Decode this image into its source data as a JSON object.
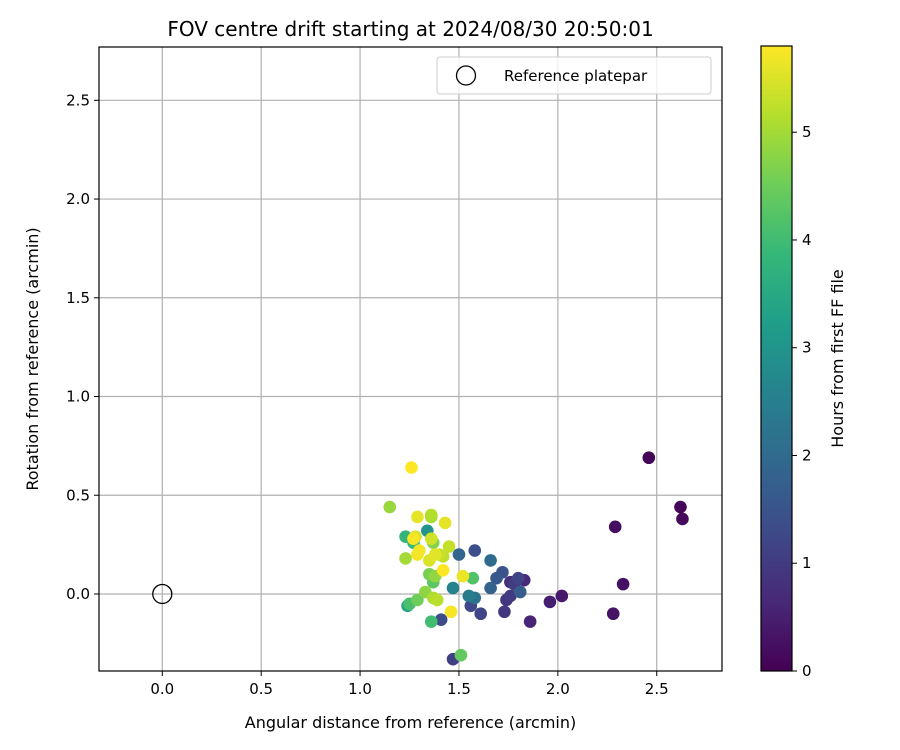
{
  "chart_data": {
    "type": "scatter",
    "title": "FOV centre drift starting at 2024/08/30 20:50:01",
    "xlabel": "Angular distance from reference (arcmin)",
    "ylabel": "Rotation from reference (arcmin)",
    "xlim": [
      -0.32,
      2.83
    ],
    "ylim": [
      -0.39,
      2.77
    ],
    "xticks": [
      0.0,
      0.5,
      1.0,
      1.5,
      2.0,
      2.5
    ],
    "yticks": [
      0.0,
      0.5,
      1.0,
      1.5,
      2.0,
      2.5
    ],
    "xtick_labels": [
      "0.0",
      "0.5",
      "1.0",
      "1.5",
      "2.0",
      "2.5"
    ],
    "ytick_labels": [
      "0.0",
      "0.5",
      "1.0",
      "1.5",
      "2.0",
      "2.5"
    ],
    "grid": true,
    "legend": {
      "placement": "top-right",
      "entries": [
        "Reference platepar"
      ]
    },
    "reference_point": {
      "name": "Reference platepar",
      "x": 0.0,
      "y": 0.0
    },
    "colorbar": {
      "label": "Hours from first FF file",
      "colormap": "viridis",
      "range": [
        0,
        5.8
      ],
      "ticks": [
        0,
        1,
        2,
        3,
        4,
        5
      ],
      "tick_labels": [
        "0",
        "1",
        "2",
        "3",
        "4",
        "5"
      ]
    },
    "points": [
      {
        "x": 2.46,
        "y": 0.69,
        "t": 0.05
      },
      {
        "x": 2.62,
        "y": 0.44,
        "t": 0.1
      },
      {
        "x": 2.63,
        "y": 0.38,
        "t": 0.15
      },
      {
        "x": 2.29,
        "y": 0.34,
        "t": 0.2
      },
      {
        "x": 2.33,
        "y": 0.05,
        "t": 0.25
      },
      {
        "x": 2.28,
        "y": -0.1,
        "t": 0.3
      },
      {
        "x": 2.02,
        "y": -0.01,
        "t": 0.4
      },
      {
        "x": 1.96,
        "y": -0.04,
        "t": 0.5
      },
      {
        "x": 1.86,
        "y": -0.14,
        "t": 0.6
      },
      {
        "x": 1.83,
        "y": 0.07,
        "t": 0.7
      },
      {
        "x": 1.76,
        "y": 0.06,
        "t": 0.8
      },
      {
        "x": 1.74,
        "y": -0.03,
        "t": 0.9
      },
      {
        "x": 1.73,
        "y": -0.09,
        "t": 0.95
      },
      {
        "x": 1.76,
        "y": -0.01,
        "t": 1.0
      },
      {
        "x": 1.78,
        "y": 0.05,
        "t": 1.05
      },
      {
        "x": 1.8,
        "y": 0.08,
        "t": 1.15
      },
      {
        "x": 1.47,
        "y": -0.33,
        "t": 1.1
      },
      {
        "x": 1.61,
        "y": -0.1,
        "t": 1.2
      },
      {
        "x": 1.56,
        "y": -0.06,
        "t": 1.25
      },
      {
        "x": 1.41,
        "y": -0.13,
        "t": 1.3
      },
      {
        "x": 1.58,
        "y": 0.22,
        "t": 1.4
      },
      {
        "x": 1.72,
        "y": 0.11,
        "t": 1.5
      },
      {
        "x": 1.69,
        "y": 0.08,
        "t": 1.6
      },
      {
        "x": 1.81,
        "y": 0.01,
        "t": 1.7
      },
      {
        "x": 1.66,
        "y": 0.03,
        "t": 1.8
      },
      {
        "x": 1.5,
        "y": 0.2,
        "t": 1.9
      },
      {
        "x": 1.66,
        "y": 0.17,
        "t": 2.0
      },
      {
        "x": 1.58,
        "y": -0.02,
        "t": 2.2
      },
      {
        "x": 1.55,
        "y": -0.01,
        "t": 2.4
      },
      {
        "x": 1.47,
        "y": 0.03,
        "t": 2.6
      },
      {
        "x": 1.34,
        "y": 0.32,
        "t": 3.0
      },
      {
        "x": 1.24,
        "y": -0.06,
        "t": 3.4
      },
      {
        "x": 1.23,
        "y": 0.29,
        "t": 3.8
      },
      {
        "x": 1.27,
        "y": 0.26,
        "t": 3.9
      },
      {
        "x": 1.36,
        "y": -0.14,
        "t": 4.0
      },
      {
        "x": 1.25,
        "y": -0.05,
        "t": 4.1
      },
      {
        "x": 1.57,
        "y": 0.08,
        "t": 4.2
      },
      {
        "x": 1.37,
        "y": 0.06,
        "t": 4.3
      },
      {
        "x": 1.51,
        "y": -0.31,
        "t": 4.4
      },
      {
        "x": 1.29,
        "y": -0.03,
        "t": 4.5
      },
      {
        "x": 1.35,
        "y": 0.1,
        "t": 4.6
      },
      {
        "x": 1.37,
        "y": 0.26,
        "t": 4.7
      },
      {
        "x": 1.33,
        "y": 0.01,
        "t": 4.8
      },
      {
        "x": 1.38,
        "y": 0.09,
        "t": 4.85
      },
      {
        "x": 1.15,
        "y": 0.44,
        "t": 4.9
      },
      {
        "x": 1.23,
        "y": 0.18,
        "t": 5.0
      },
      {
        "x": 1.36,
        "y": 0.39,
        "t": 5.05
      },
      {
        "x": 1.37,
        "y": -0.02,
        "t": 5.1
      },
      {
        "x": 1.36,
        "y": 0.4,
        "t": 5.15
      },
      {
        "x": 1.39,
        "y": -0.03,
        "t": 5.2
      },
      {
        "x": 1.42,
        "y": 0.19,
        "t": 5.25
      },
      {
        "x": 1.45,
        "y": 0.24,
        "t": 5.3
      },
      {
        "x": 1.4,
        "y": 0.2,
        "t": 5.35
      },
      {
        "x": 1.36,
        "y": 0.28,
        "t": 5.4
      },
      {
        "x": 1.28,
        "y": 0.29,
        "t": 5.45
      },
      {
        "x": 1.35,
        "y": 0.17,
        "t": 5.5
      },
      {
        "x": 1.38,
        "y": 0.2,
        "t": 5.55
      },
      {
        "x": 1.29,
        "y": 0.39,
        "t": 5.6
      },
      {
        "x": 1.43,
        "y": 0.36,
        "t": 5.6
      },
      {
        "x": 1.52,
        "y": 0.09,
        "t": 5.65
      },
      {
        "x": 1.29,
        "y": 0.2,
        "t": 5.7
      },
      {
        "x": 1.3,
        "y": 0.22,
        "t": 5.7
      },
      {
        "x": 1.27,
        "y": 0.28,
        "t": 5.75
      },
      {
        "x": 1.46,
        "y": -0.09,
        "t": 5.75
      },
      {
        "x": 1.42,
        "y": 0.12,
        "t": 5.8
      },
      {
        "x": 1.26,
        "y": 0.64,
        "t": 5.8
      }
    ]
  }
}
